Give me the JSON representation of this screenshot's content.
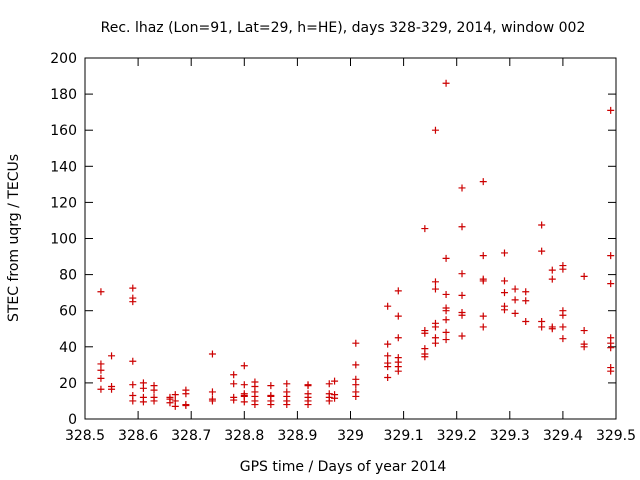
{
  "chart_data": {
    "type": "scatter",
    "title": "Rec. lhaz (Lon=91, Lat=29, h=HE), days 328-329, 2014, window 002",
    "xlabel": "GPS time / Days of year 2014",
    "ylabel": "STEC from uqrg / TECUs",
    "xlim": [
      328.5,
      329.5
    ],
    "ylim": [
      0,
      200
    ],
    "grid": false,
    "marker": "plus",
    "color": "#cc0000",
    "xticks": [
      328.5,
      328.6,
      328.7,
      328.8,
      328.9,
      329,
      329.1,
      329.2,
      329.3,
      329.4,
      329.5
    ],
    "xtick_labels": [
      "328.5",
      "328.6",
      "328.7",
      "328.8",
      "328.9",
      "329",
      "329.1",
      "329.2",
      "329.3",
      "329.4",
      "329.5"
    ],
    "yticks": [
      0,
      20,
      40,
      60,
      80,
      100,
      120,
      140,
      160,
      180,
      200
    ],
    "ytick_labels": [
      "0",
      "20",
      "40",
      "60",
      "80",
      "100",
      "120",
      "140",
      "160",
      "180",
      "200"
    ],
    "points": [
      [
        328.53,
        70.5
      ],
      [
        328.53,
        30.5
      ],
      [
        328.53,
        27
      ],
      [
        328.53,
        22.5
      ],
      [
        328.53,
        16.5
      ],
      [
        328.55,
        35
      ],
      [
        328.55,
        18
      ],
      [
        328.55,
        16.5
      ],
      [
        328.59,
        72.5
      ],
      [
        328.59,
        67
      ],
      [
        328.59,
        65
      ],
      [
        328.59,
        32
      ],
      [
        328.59,
        19
      ],
      [
        328.59,
        13
      ],
      [
        328.59,
        10
      ],
      [
        328.61,
        20
      ],
      [
        328.61,
        17
      ],
      [
        328.61,
        12
      ],
      [
        328.61,
        9.5
      ],
      [
        328.63,
        18.5
      ],
      [
        328.63,
        16
      ],
      [
        328.63,
        12
      ],
      [
        328.63,
        10
      ],
      [
        328.66,
        12
      ],
      [
        328.66,
        11
      ],
      [
        328.66,
        9
      ],
      [
        328.67,
        13.5
      ],
      [
        328.67,
        10
      ],
      [
        328.67,
        7
      ],
      [
        328.69,
        16
      ],
      [
        328.69,
        14
      ],
      [
        328.69,
        8
      ],
      [
        328.69,
        7.5
      ],
      [
        328.74,
        36
      ],
      [
        328.74,
        15
      ],
      [
        328.74,
        11
      ],
      [
        328.74,
        10
      ],
      [
        328.78,
        24.5
      ],
      [
        328.78,
        19.5
      ],
      [
        328.78,
        12
      ],
      [
        328.78,
        10.5
      ],
      [
        328.8,
        29.5
      ],
      [
        328.8,
        19
      ],
      [
        328.8,
        14
      ],
      [
        328.8,
        13
      ],
      [
        328.8,
        12.5
      ],
      [
        328.8,
        9.5
      ],
      [
        328.82,
        20.5
      ],
      [
        328.82,
        18
      ],
      [
        328.82,
        15
      ],
      [
        328.82,
        12.5
      ],
      [
        328.82,
        10
      ],
      [
        328.82,
        8
      ],
      [
        328.85,
        18.5
      ],
      [
        328.85,
        13
      ],
      [
        328.85,
        12.5
      ],
      [
        328.85,
        10
      ],
      [
        328.85,
        8
      ],
      [
        328.88,
        19.5
      ],
      [
        328.88,
        15
      ],
      [
        328.88,
        12.5
      ],
      [
        328.88,
        10
      ],
      [
        328.88,
        8
      ],
      [
        328.92,
        19
      ],
      [
        328.92,
        18.5
      ],
      [
        328.92,
        14
      ],
      [
        328.92,
        12
      ],
      [
        328.92,
        10
      ],
      [
        328.92,
        8
      ],
      [
        328.96,
        19.5
      ],
      [
        328.96,
        14
      ],
      [
        328.96,
        12
      ],
      [
        328.96,
        10
      ],
      [
        328.97,
        21
      ],
      [
        328.97,
        13.5
      ],
      [
        328.97,
        11.5
      ],
      [
        329.01,
        42
      ],
      [
        329.01,
        30
      ],
      [
        329.01,
        22
      ],
      [
        329.01,
        19
      ],
      [
        329.01,
        15
      ],
      [
        329.01,
        12.5
      ],
      [
        329.07,
        62.5
      ],
      [
        329.07,
        41.5
      ],
      [
        329.07,
        35
      ],
      [
        329.07,
        31
      ],
      [
        329.07,
        29
      ],
      [
        329.07,
        23
      ],
      [
        329.09,
        71
      ],
      [
        329.09,
        57
      ],
      [
        329.09,
        45
      ],
      [
        329.09,
        34
      ],
      [
        329.09,
        31.5
      ],
      [
        329.09,
        29
      ],
      [
        329.09,
        26.5
      ],
      [
        329.14,
        105.5
      ],
      [
        329.14,
        49
      ],
      [
        329.14,
        47.5
      ],
      [
        329.14,
        39
      ],
      [
        329.14,
        36
      ],
      [
        329.14,
        34.5
      ],
      [
        329.16,
        160
      ],
      [
        329.16,
        76
      ],
      [
        329.16,
        72
      ],
      [
        329.16,
        53
      ],
      [
        329.16,
        51
      ],
      [
        329.16,
        45
      ],
      [
        329.16,
        42
      ],
      [
        329.18,
        186
      ],
      [
        329.18,
        89
      ],
      [
        329.18,
        69
      ],
      [
        329.18,
        61.5
      ],
      [
        329.18,
        60
      ],
      [
        329.18,
        55
      ],
      [
        329.18,
        48
      ],
      [
        329.18,
        44
      ],
      [
        329.21,
        128
      ],
      [
        329.21,
        106.5
      ],
      [
        329.21,
        80.5
      ],
      [
        329.21,
        68.5
      ],
      [
        329.21,
        59
      ],
      [
        329.21,
        57.5
      ],
      [
        329.21,
        46
      ],
      [
        329.25,
        131.5
      ],
      [
        329.25,
        90.5
      ],
      [
        329.25,
        77.5
      ],
      [
        329.25,
        76.5
      ],
      [
        329.25,
        57
      ],
      [
        329.25,
        51
      ],
      [
        329.29,
        92
      ],
      [
        329.29,
        76.5
      ],
      [
        329.29,
        70
      ],
      [
        329.29,
        62.5
      ],
      [
        329.29,
        60.5
      ],
      [
        329.31,
        72
      ],
      [
        329.31,
        66
      ],
      [
        329.31,
        58.5
      ],
      [
        329.33,
        70.5
      ],
      [
        329.33,
        65.5
      ],
      [
        329.33,
        54
      ],
      [
        329.36,
        107.5
      ],
      [
        329.36,
        93
      ],
      [
        329.36,
        54
      ],
      [
        329.36,
        51
      ],
      [
        329.38,
        82.5
      ],
      [
        329.38,
        77.5
      ],
      [
        329.38,
        51
      ],
      [
        329.38,
        50
      ],
      [
        329.4,
        85
      ],
      [
        329.4,
        83
      ],
      [
        329.4,
        60
      ],
      [
        329.4,
        57.5
      ],
      [
        329.4,
        51
      ],
      [
        329.4,
        44.5
      ],
      [
        329.44,
        79
      ],
      [
        329.44,
        49
      ],
      [
        329.44,
        41.5
      ],
      [
        329.44,
        40
      ],
      [
        329.49,
        171
      ],
      [
        329.49,
        90.5
      ],
      [
        329.49,
        75
      ],
      [
        329.49,
        45
      ],
      [
        329.49,
        42
      ],
      [
        329.49,
        39.5
      ],
      [
        329.49,
        28.5
      ],
      [
        329.49,
        26.5
      ]
    ]
  }
}
